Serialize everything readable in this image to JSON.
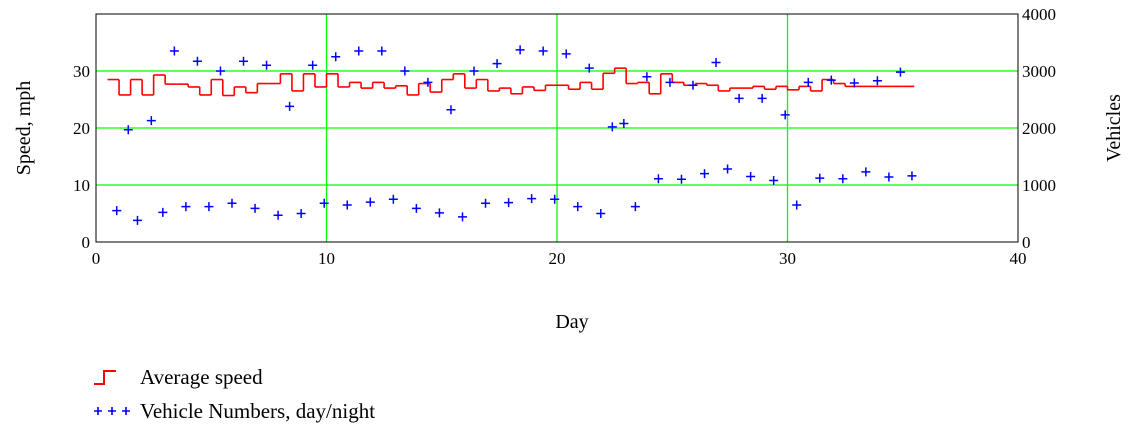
{
  "chart_data": {
    "type": "line",
    "title": "",
    "xlabel": "Day",
    "ylabel": "Speed, mph",
    "y2label": "Vehicles",
    "xlim": [
      0,
      40
    ],
    "ylim": [
      0,
      40
    ],
    "y2lim": [
      0,
      4000
    ],
    "xticks": [
      "0",
      "10",
      "20",
      "30",
      "40"
    ],
    "yticks": [
      "0",
      "10",
      "20",
      "30"
    ],
    "y2ticks": [
      "0",
      "1000",
      "2000",
      "3000",
      "4000"
    ],
    "grid": true,
    "legend_position": "bottom-left",
    "series": [
      {
        "name": "Average speed",
        "style": "step",
        "axis": "left",
        "color": "#ff0000",
        "x": [
          0.5,
          1,
          1.5,
          2,
          2.5,
          3,
          3.5,
          4,
          4.5,
          5,
          5.5,
          6,
          6.5,
          7,
          7.5,
          8,
          8.5,
          9,
          9.5,
          10,
          10.5,
          11,
          11.5,
          12,
          12.5,
          13,
          13.5,
          14,
          14.5,
          15,
          15.5,
          16,
          16.5,
          17,
          17.5,
          18,
          18.5,
          19,
          19.5,
          20,
          20.5,
          21,
          21.5,
          22,
          22.5,
          23,
          23.5,
          24,
          24.5,
          25,
          25.5,
          26,
          26.5,
          27,
          27.5,
          28,
          28.5,
          29,
          29.5,
          30,
          30.5,
          31,
          31.5,
          32,
          32.5,
          33,
          33.5,
          34,
          34.5,
          35
        ],
        "y": [
          28.5,
          25.8,
          28.5,
          25.8,
          29.3,
          27.7,
          27.7,
          27.2,
          25.8,
          28.5,
          25.7,
          27.2,
          26.2,
          27.8,
          27.8,
          29.5,
          26.5,
          29.5,
          27.2,
          29.5,
          27.2,
          28.0,
          27.0,
          28.0,
          27.0,
          27.4,
          25.8,
          27.8,
          26.3,
          28.5,
          29.5,
          27.0,
          28.5,
          26.5,
          27.0,
          26.0,
          27.2,
          26.6,
          27.5,
          27.5,
          26.8,
          28.0,
          26.8,
          29.6,
          30.5,
          27.8,
          28.0,
          26.0,
          29.5,
          28.0,
          27.5,
          27.8,
          27.5,
          26.5,
          27.0,
          27.0,
          27.3,
          26.8,
          27.3,
          26.7,
          27.3,
          26.5,
          28.5,
          27.8,
          27.3,
          27.3,
          27.3,
          27.3,
          27.3,
          27.3
        ]
      },
      {
        "name": "Vehicle Numbers, day/night",
        "style": "scatter",
        "marker": "+",
        "axis": "right",
        "color": "#0000ff",
        "x": [
          0.9,
          1.4,
          1.8,
          2.4,
          2.9,
          3.4,
          3.9,
          4.4,
          4.9,
          5.4,
          5.9,
          6.4,
          6.9,
          7.4,
          7.9,
          8.4,
          8.9,
          9.4,
          9.9,
          10.4,
          10.9,
          11.4,
          11.9,
          12.4,
          12.9,
          13.4,
          13.9,
          14.4,
          14.9,
          15.4,
          15.9,
          16.4,
          16.9,
          17.4,
          17.9,
          18.4,
          18.9,
          19.4,
          19.9,
          20.4,
          20.9,
          21.4,
          21.9,
          22.4,
          22.9,
          23.4,
          23.9,
          24.4,
          24.9,
          25.4,
          25.9,
          26.4,
          26.9,
          27.4,
          27.9,
          28.4,
          28.9,
          29.4,
          29.9,
          30.4,
          30.9,
          31.4,
          31.9,
          32.4,
          32.9,
          33.4,
          33.9,
          34.4,
          34.9,
          35.4
        ],
        "y": [
          550,
          1970,
          380,
          2130,
          520,
          3350,
          620,
          3170,
          620,
          3000,
          680,
          3170,
          590,
          3100,
          470,
          2380,
          500,
          3100,
          680,
          3250,
          650,
          3350,
          700,
          3350,
          750,
          3000,
          590,
          2800,
          510,
          2320,
          440,
          3000,
          680,
          3130,
          690,
          3370,
          760,
          3350,
          750,
          3300,
          620,
          3050,
          500,
          2020,
          2080,
          620,
          2900,
          1110,
          2800,
          1100,
          2750,
          1200,
          3150,
          1280,
          2520,
          1150,
          2520,
          1080,
          2230,
          650,
          2800,
          1120,
          2840,
          1110,
          2790,
          1230,
          2830,
          1140,
          2980,
          1160
        ]
      }
    ]
  }
}
